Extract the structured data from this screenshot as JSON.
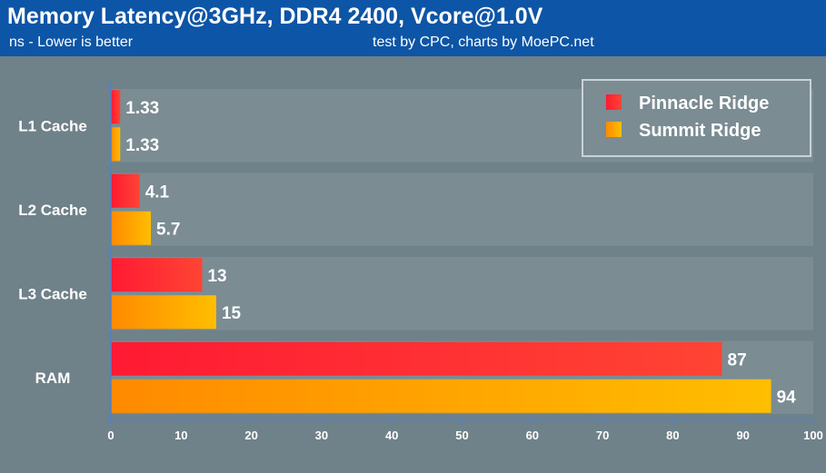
{
  "header": {
    "title": "Memory Latency@3GHz, DDR4 2400, Vcore@1.0V",
    "subtitle": "ns - Lower is better",
    "credit": "test by CPC, charts by MoePC.net"
  },
  "colors": {
    "header_bg": "#0d55a6",
    "background": "#6f8189",
    "band": "#7b8c93",
    "axis": "#4f83c9",
    "pinnacle_start": "#ff1a33",
    "pinnacle_end": "#ff4433",
    "summit_start": "#ff8a00",
    "summit_end": "#ffbe00"
  },
  "chart_data": {
    "type": "bar",
    "orientation": "horizontal",
    "title": "Memory Latency@3GHz, DDR4 2400, Vcore@1.0V",
    "subtitle": "ns - Lower is better",
    "categories": [
      "L1 Cache",
      "L2 Cache",
      "L3 Cache",
      "RAM"
    ],
    "series": [
      {
        "name": "Pinnacle Ridge",
        "values": [
          1.33,
          4.1,
          13,
          87
        ],
        "labels": [
          "1.33",
          "4.1",
          "13",
          "87"
        ]
      },
      {
        "name": "Summit Ridge",
        "values": [
          1.33,
          5.7,
          15,
          94
        ],
        "labels": [
          "1.33",
          "5.7",
          "15",
          "94"
        ]
      }
    ],
    "xlim": [
      0,
      100
    ],
    "xticks": [
      0,
      10,
      20,
      30,
      40,
      50,
      60,
      70,
      80,
      90,
      100
    ],
    "legend_position": "top-right",
    "grid": false
  }
}
